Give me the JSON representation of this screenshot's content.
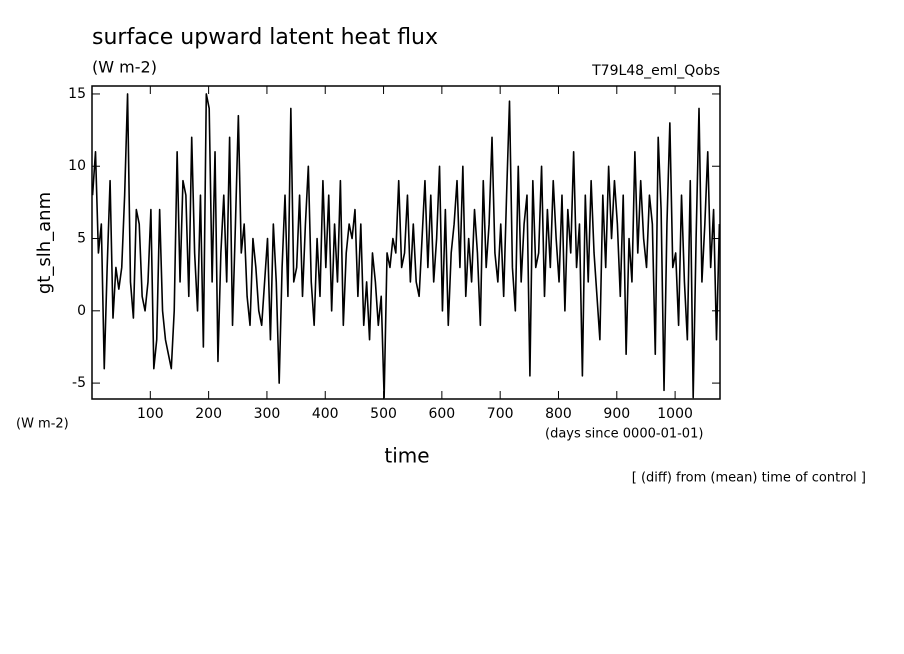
{
  "chart_data": {
    "type": "line",
    "title": "surface upward latent heat flux",
    "subtitle": "(W m-2)",
    "annotation": "T79L48_eml_Qobs",
    "y_label": "gt_slh_anm",
    "y_unit_label": "(W m-2)",
    "x_label": "time",
    "x_unit_label": "(days since 0000-01-01)",
    "note": "[ (diff) from (mean) time of control ]",
    "xlim": [
      0,
      1077
    ],
    "ylim": [
      -6.1,
      15.55
    ],
    "xticks": [
      100,
      200,
      300,
      400,
      500,
      600,
      700,
      800,
      900,
      1000
    ],
    "yticks": [
      -5,
      0,
      5,
      10,
      15
    ],
    "color": "#000000",
    "x": [
      1,
      6,
      11,
      16,
      21,
      26,
      31,
      36,
      41,
      46,
      51,
      56,
      61,
      66,
      71,
      76,
      81,
      86,
      91,
      96,
      101,
      106,
      111,
      116,
      121,
      126,
      131,
      136,
      141,
      146,
      151,
      156,
      161,
      166,
      171,
      176,
      181,
      186,
      191,
      196,
      201,
      206,
      211,
      216,
      221,
      226,
      231,
      236,
      241,
      246,
      251,
      256,
      261,
      266,
      271,
      276,
      281,
      286,
      291,
      296,
      301,
      306,
      311,
      316,
      321,
      326,
      331,
      336,
      341,
      346,
      351,
      356,
      361,
      366,
      371,
      376,
      381,
      386,
      391,
      396,
      401,
      406,
      411,
      416,
      421,
      426,
      431,
      436,
      441,
      446,
      451,
      456,
      461,
      466,
      471,
      476,
      481,
      486,
      491,
      496,
      501,
      506,
      511,
      516,
      521,
      526,
      531,
      536,
      541,
      546,
      551,
      556,
      561,
      566,
      571,
      576,
      581,
      586,
      591,
      596,
      601,
      606,
      611,
      616,
      621,
      626,
      631,
      636,
      641,
      646,
      651,
      656,
      661,
      666,
      671,
      676,
      681,
      686,
      691,
      696,
      701,
      706,
      711,
      716,
      721,
      726,
      731,
      736,
      741,
      746,
      751,
      756,
      761,
      766,
      771,
      776,
      781,
      786,
      791,
      796,
      801,
      806,
      811,
      816,
      821,
      826,
      831,
      836,
      841,
      846,
      851,
      856,
      861,
      866,
      871,
      876,
      881,
      886,
      891,
      896,
      901,
      906,
      911,
      916,
      921,
      926,
      931,
      936,
      941,
      946,
      951,
      956,
      961,
      966,
      971,
      976,
      981,
      986,
      991,
      996,
      1001,
      1006,
      1011,
      1016,
      1021,
      1026,
      1031,
      1036,
      1041,
      1046,
      1051,
      1056,
      1061,
      1066,
      1071,
      1076
    ],
    "values": [
      8,
      11,
      4,
      6,
      -4,
      3,
      9,
      -0.5,
      3,
      1.5,
      3,
      8,
      15,
      2,
      -0.5,
      7,
      6,
      1,
      0,
      2,
      7,
      -4,
      -2,
      7,
      0,
      -2,
      -3,
      -4,
      0,
      11,
      2,
      9,
      8,
      1,
      12,
      4,
      0,
      8,
      -2.5,
      15,
      14,
      2,
      11,
      -3.5,
      4,
      8,
      2,
      12,
      -1,
      6,
      13.5,
      4,
      6,
      1,
      -1,
      5,
      3,
      0,
      -1,
      2,
      5,
      -2,
      6,
      2,
      -5,
      3,
      8,
      1,
      14,
      2,
      3,
      8,
      1,
      6,
      10,
      2,
      -1,
      5,
      1,
      9,
      3,
      8,
      0,
      6,
      2,
      9,
      -1,
      4,
      6,
      5,
      7,
      1,
      6,
      -1,
      2,
      -2,
      4,
      2,
      -1,
      1,
      -6,
      4,
      3,
      5,
      4,
      9,
      3,
      4,
      8,
      2,
      6,
      2,
      1,
      5,
      9,
      3,
      8,
      2,
      5,
      10,
      0,
      7,
      -1,
      4,
      6,
      9,
      3,
      10,
      1,
      5,
      2,
      7,
      4,
      -1,
      9,
      3,
      6,
      12,
      4,
      2,
      6,
      1,
      8,
      14.5,
      3,
      0,
      10,
      2,
      6,
      8,
      -4.5,
      9,
      3,
      4,
      10,
      1,
      7,
      3,
      9,
      5,
      2,
      8,
      0,
      7,
      4,
      11,
      3,
      6,
      -4.5,
      8,
      2,
      9,
      4,
      1,
      -2,
      8,
      3,
      10,
      5,
      9,
      6,
      1,
      8,
      -3,
      5,
      2,
      11,
      4,
      9,
      5,
      3,
      8,
      6,
      -3,
      12,
      7,
      -5.5,
      6,
      13,
      3,
      4,
      -1,
      8,
      2,
      -2,
      9,
      -6,
      5,
      14,
      2,
      6,
      11,
      3,
      7,
      -2,
      6
    ]
  }
}
